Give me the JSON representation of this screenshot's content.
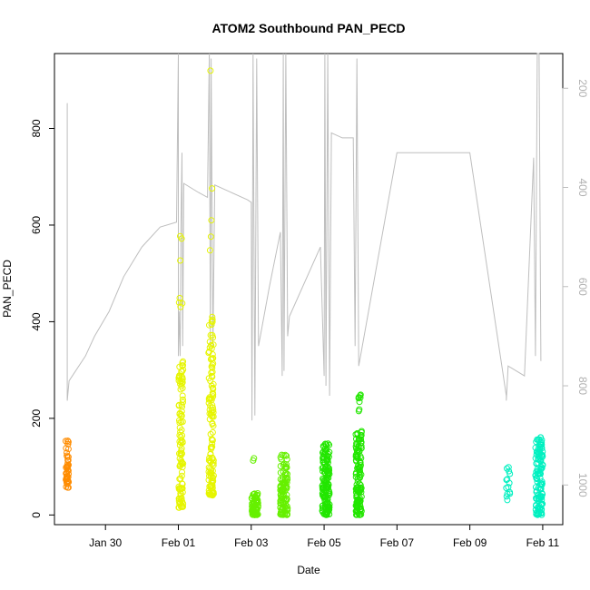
{
  "chart_data": {
    "type": "scatter",
    "title": "ATOM2 Southbound PAN_PECD",
    "xlabel": "Date",
    "ylabel": "PAN_PECD",
    "x_axis": {
      "min": -2.4,
      "max": 11.55,
      "ticks": [
        {
          "value": -1,
          "label": "Jan 30"
        },
        {
          "value": 1,
          "label": "Feb 01"
        },
        {
          "value": 3,
          "label": "Feb 03"
        },
        {
          "value": 5,
          "label": "Feb 05"
        },
        {
          "value": 7,
          "label": "Feb 07"
        },
        {
          "value": 9,
          "label": "Feb 09"
        },
        {
          "value": 11,
          "label": "Feb 11"
        }
      ]
    },
    "y_axis": {
      "min": -20,
      "max": 955,
      "ticks": [
        0,
        200,
        400,
        600,
        800
      ]
    },
    "y2_axis": {
      "min": 1080,
      "max": 130,
      "reversed": true,
      "ticks": [
        200,
        400,
        600,
        800,
        1000
      ],
      "color": "#bebebe"
    },
    "grid": false,
    "series": [
      {
        "color": "#FF8C00",
        "clusters": [
          {
            "x": -2.05,
            "xspread": 0.04,
            "ymin": 55,
            "ymax": 165,
            "n": 45
          }
        ]
      },
      {
        "color": "#E6F500",
        "clusters": [
          {
            "x": 1.07,
            "xspread": 0.06,
            "ymin": 15,
            "ymax": 320,
            "n": 110
          },
          {
            "x": 1.07,
            "xspread": 0.05,
            "ymin": 430,
            "ymax": 595,
            "n": 7
          },
          {
            "x": 1.9,
            "xspread": 0.07,
            "ymin": 40,
            "ymax": 420,
            "n": 130
          },
          {
            "x": 1.9,
            "xspread": 0.05,
            "ymin": 525,
            "ymax": 690,
            "n": 4
          },
          {
            "x": 1.9,
            "xspread": 0.02,
            "ymin": 915,
            "ymax": 925,
            "n": 1
          }
        ]
      },
      {
        "color": "#66F000",
        "clusters": [
          {
            "x": 3.1,
            "xspread": 0.09,
            "ymin": 0,
            "ymax": 45,
            "n": 70
          },
          {
            "x": 3.05,
            "xspread": 0.03,
            "ymin": 80,
            "ymax": 140,
            "n": 2
          },
          {
            "x": 3.9,
            "xspread": 0.1,
            "ymin": 0,
            "ymax": 130,
            "n": 110
          }
        ]
      },
      {
        "color": "#22E600",
        "clusters": [
          {
            "x": 5.05,
            "xspread": 0.1,
            "ymin": 0,
            "ymax": 150,
            "n": 150
          },
          {
            "x": 5.95,
            "xspread": 0.08,
            "ymin": 0,
            "ymax": 175,
            "n": 130
          },
          {
            "x": 5.97,
            "xspread": 0.04,
            "ymin": 215,
            "ymax": 260,
            "n": 8
          }
        ]
      },
      {
        "color": "#00F0C0",
        "clusters": [
          {
            "x": 10.05,
            "xspread": 0.05,
            "ymin": 30,
            "ymax": 100,
            "n": 14
          },
          {
            "x": 10.9,
            "xspread": 0.1,
            "ymin": 0,
            "ymax": 165,
            "n": 120
          }
        ]
      }
    ],
    "secondary_series": {
      "name": "",
      "color": "#bebebe",
      "x": [
        -2.05,
        -2.05,
        -2.0,
        -1.55,
        -1.3,
        -0.9,
        -0.5,
        0.0,
        0.5,
        0.95,
        1.0,
        1.0,
        1.02,
        1.05,
        1.07,
        1.1,
        1.12,
        1.15,
        1.55,
        1.8,
        1.85,
        1.88,
        1.9,
        1.95,
        2.0,
        2.9,
        3.0,
        3.02,
        3.05,
        3.1,
        3.15,
        3.2,
        3.5,
        3.8,
        3.85,
        3.88,
        3.9,
        3.95,
        4.0,
        4.05,
        4.9,
        5.0,
        5.02,
        5.05,
        5.1,
        5.15,
        5.2,
        5.5,
        5.8,
        5.85,
        5.9,
        5.95,
        6.0,
        7.0,
        8.0,
        9.0,
        10.0,
        10.0,
        10.05,
        10.5,
        10.75,
        10.8,
        10.85,
        10.9,
        10.95
      ],
      "y": [
        230,
        830,
        790,
        740,
        700,
        650,
        580,
        520,
        480,
        470,
        130,
        740,
        650,
        740,
        480,
        330,
        720,
        392,
        410,
        420,
        130,
        720,
        140,
        720,
        395,
        425,
        430,
        870,
        130,
        860,
        140,
        720,
        600,
        490,
        780,
        130,
        770,
        130,
        700,
        660,
        520,
        780,
        130,
        800,
        130,
        820,
        290,
        300,
        300,
        720,
        140,
        760,
        740,
        330,
        330,
        330,
        820,
        830,
        760,
        780,
        340,
        740,
        130,
        130,
        750
      ]
    }
  }
}
